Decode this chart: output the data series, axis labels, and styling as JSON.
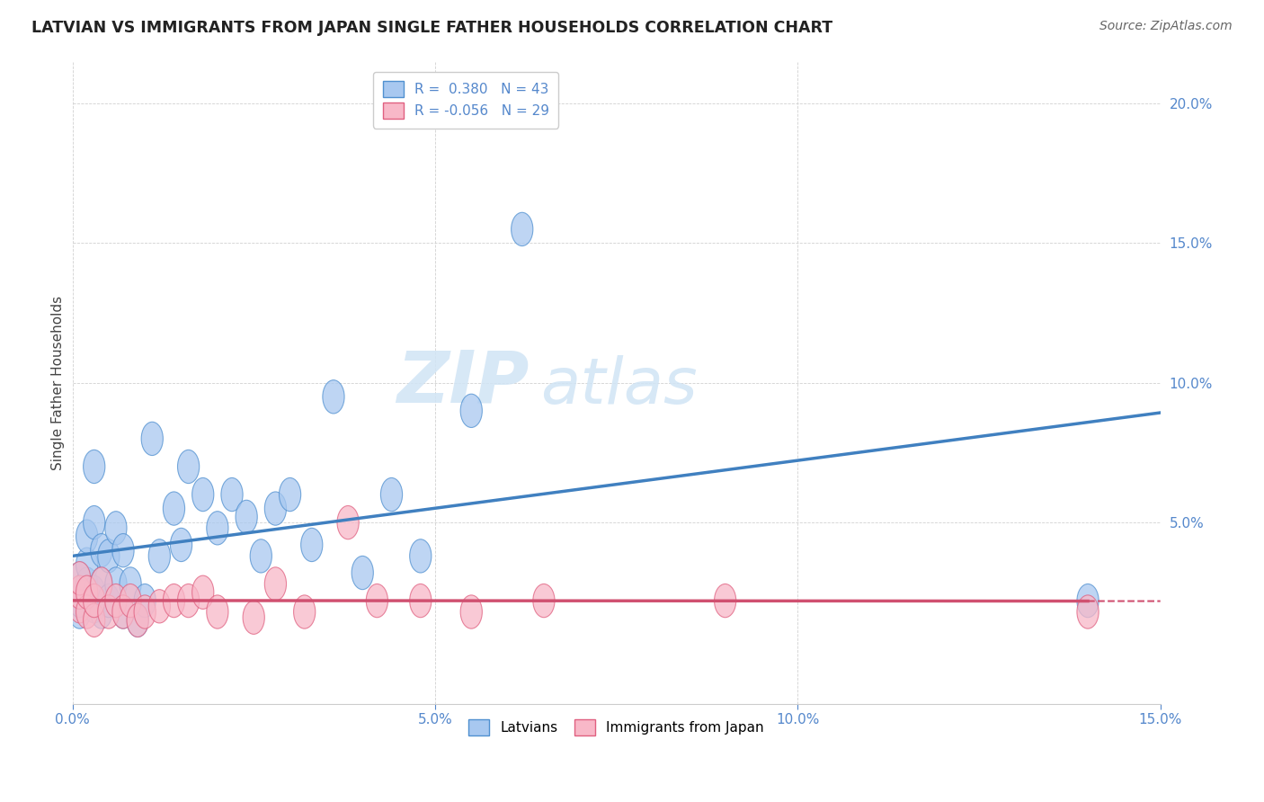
{
  "title": "LATVIAN VS IMMIGRANTS FROM JAPAN SINGLE FATHER HOUSEHOLDS CORRELATION CHART",
  "source": "Source: ZipAtlas.com",
  "ylabel": "Single Father Households",
  "xlim": [
    0,
    0.15
  ],
  "ylim": [
    -0.015,
    0.215
  ],
  "xticks": [
    0.0,
    0.05,
    0.1,
    0.15
  ],
  "yticks": [
    0.05,
    0.1,
    0.15,
    0.2
  ],
  "r_latvian": 0.38,
  "n_latvian": 43,
  "r_japan": -0.056,
  "n_japan": 29,
  "blue_fill": "#A8C8F0",
  "blue_edge": "#5090D0",
  "pink_fill": "#F8B8C8",
  "pink_edge": "#E06080",
  "blue_line": "#4080C0",
  "pink_line": "#D05070",
  "tick_color": "#5588CC",
  "legend_label_latvian": "Latvians",
  "legend_label_japan": "Immigrants from Japan",
  "latvian_x": [
    0.001,
    0.001,
    0.001,
    0.002,
    0.002,
    0.002,
    0.002,
    0.003,
    0.003,
    0.003,
    0.003,
    0.004,
    0.004,
    0.004,
    0.005,
    0.005,
    0.006,
    0.006,
    0.007,
    0.007,
    0.008,
    0.009,
    0.01,
    0.011,
    0.012,
    0.014,
    0.015,
    0.016,
    0.018,
    0.02,
    0.022,
    0.024,
    0.026,
    0.028,
    0.03,
    0.033,
    0.036,
    0.04,
    0.044,
    0.048,
    0.055,
    0.062,
    0.14
  ],
  "latvian_y": [
    0.018,
    0.022,
    0.03,
    0.025,
    0.028,
    0.035,
    0.045,
    0.02,
    0.025,
    0.05,
    0.07,
    0.018,
    0.028,
    0.04,
    0.022,
    0.038,
    0.028,
    0.048,
    0.018,
    0.04,
    0.028,
    0.015,
    0.022,
    0.08,
    0.038,
    0.055,
    0.042,
    0.07,
    0.06,
    0.048,
    0.06,
    0.052,
    0.038,
    0.055,
    0.06,
    0.042,
    0.095,
    0.032,
    0.06,
    0.038,
    0.09,
    0.155,
    0.022
  ],
  "japan_x": [
    0.001,
    0.001,
    0.001,
    0.002,
    0.002,
    0.003,
    0.003,
    0.004,
    0.005,
    0.006,
    0.007,
    0.008,
    0.009,
    0.01,
    0.012,
    0.014,
    0.016,
    0.018,
    0.02,
    0.025,
    0.028,
    0.032,
    0.038,
    0.042,
    0.048,
    0.055,
    0.065,
    0.09,
    0.14
  ],
  "japan_y": [
    0.02,
    0.025,
    0.03,
    0.018,
    0.025,
    0.015,
    0.022,
    0.028,
    0.018,
    0.022,
    0.018,
    0.022,
    0.015,
    0.018,
    0.02,
    0.022,
    0.022,
    0.025,
    0.018,
    0.016,
    0.028,
    0.018,
    0.05,
    0.022,
    0.022,
    0.018,
    0.022,
    0.022,
    0.018
  ]
}
